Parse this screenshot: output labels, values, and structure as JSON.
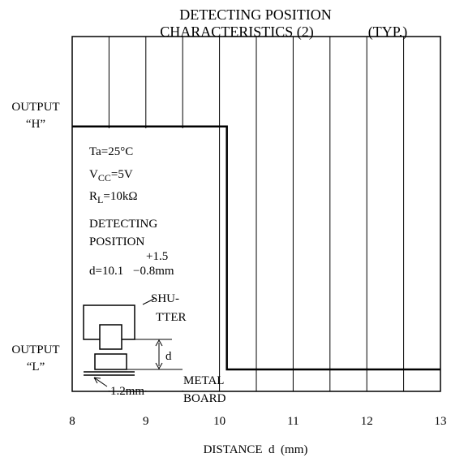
{
  "chart_data": {
    "type": "step",
    "title": [
      "DETECTING POSITION",
      "CHARACTERISTICS (2)"
    ],
    "note": "(TYP.)",
    "xlabel": "DISTANCE  d  (mm)",
    "xlim": [
      8,
      13
    ],
    "xticks": [
      8,
      9,
      10,
      11,
      12,
      13
    ],
    "xgrid": [
      8.5,
      9,
      9.5,
      10,
      10.5,
      11,
      11.5,
      12,
      12.5
    ],
    "ylim": [
      -0.09,
      1.37
    ],
    "yticks": [
      {
        "value": 1,
        "label": "OUTPUT “H”"
      },
      {
        "value": 0,
        "label": "OUTPUT “L”"
      }
    ],
    "series": [
      {
        "color": "#000000",
        "x": [
          8,
          10.1,
          10.1,
          13
        ],
        "values": [
          1,
          1,
          0,
          0
        ]
      }
    ],
    "conditions": [
      {
        "symbol": "Ta",
        "value": "=25°C"
      },
      {
        "symbol": "V",
        "subscript": "CC",
        "value": "=5V"
      },
      {
        "symbol": "R",
        "subscript": "L",
        "value": "=10kΩ"
      }
    ],
    "detecting_position": {
      "lines": [
        "DETECTING",
        "POSITION"
      ],
      "formula": "d=10.1",
      "plus": "+1.5",
      "minus": "−0.8mm"
    },
    "diagram": {
      "shutter": [
        "SHU-",
        "TTER"
      ],
      "gap": "d",
      "thickness": "1.2mm",
      "board": [
        "METAL",
        "BOARD"
      ]
    }
  }
}
